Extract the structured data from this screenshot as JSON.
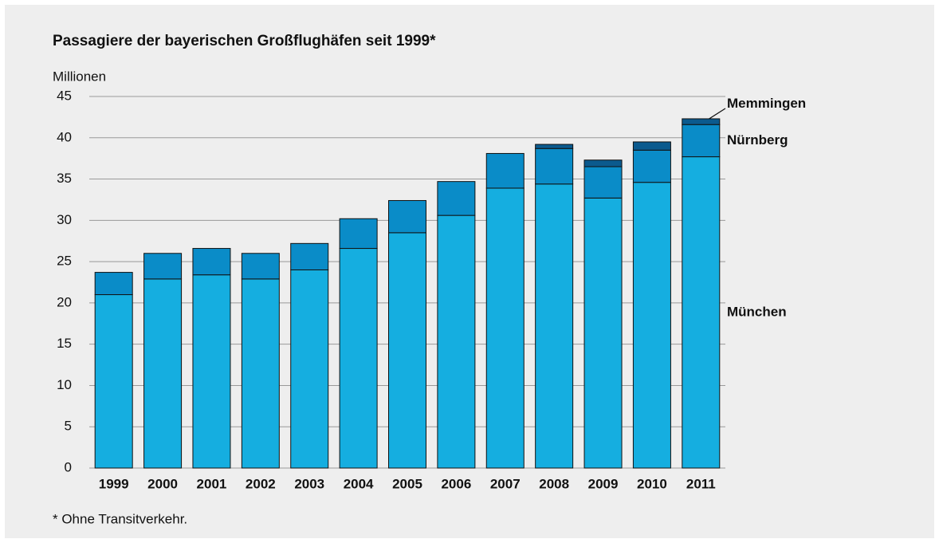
{
  "chart_data": {
    "type": "stacked_bar",
    "title": "Passagiere der bayerischen Großflughäfen seit 1999*",
    "y_label": "Millionen",
    "footnote": "* Ohne Transitverkehr.",
    "categories": [
      "1999",
      "2000",
      "2001",
      "2002",
      "2003",
      "2004",
      "2005",
      "2006",
      "2007",
      "2008",
      "2009",
      "2010",
      "2011"
    ],
    "series": [
      {
        "name": "München",
        "color": "#15aee0",
        "values": [
          21.0,
          22.9,
          23.4,
          22.9,
          24.0,
          26.6,
          28.5,
          30.6,
          33.9,
          34.4,
          32.7,
          34.6,
          37.7
        ]
      },
      {
        "name": "Nürnberg",
        "color": "#0a8cc8",
        "values": [
          2.7,
          3.1,
          3.2,
          3.1,
          3.2,
          3.6,
          3.9,
          4.1,
          4.2,
          4.3,
          3.8,
          3.9,
          3.9
        ]
      },
      {
        "name": "Memmingen",
        "color": "#0b5a8e",
        "values": [
          0,
          0,
          0,
          0,
          0,
          0,
          0,
          0,
          0,
          0.5,
          0.8,
          1.0,
          0.7
        ]
      }
    ],
    "ylim": [
      0,
      45
    ],
    "yticks": [
      0,
      5,
      10,
      15,
      20,
      25,
      30,
      35,
      40,
      45
    ],
    "grid": true
  }
}
